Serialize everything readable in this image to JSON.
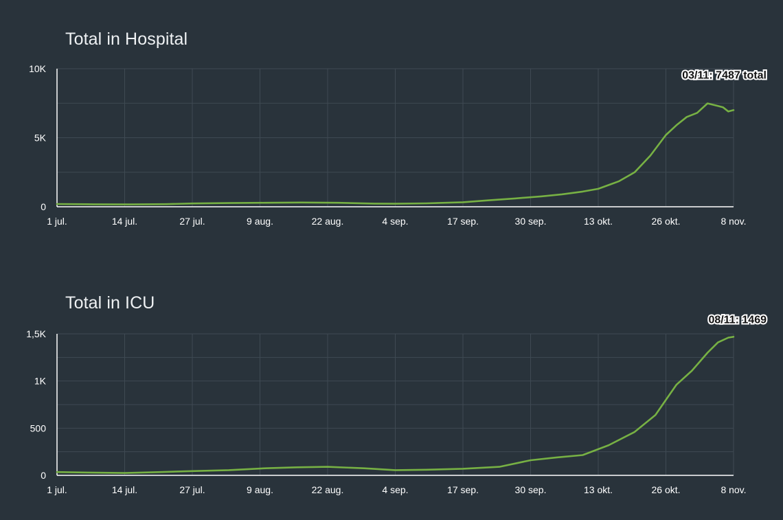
{
  "colors": {
    "background": "#29333b",
    "line": "#77b144",
    "grid": "#3f4a53",
    "text": "#ffffff"
  },
  "chart_data": [
    {
      "type": "line",
      "title": "Total in Hospital",
      "xlabel": "",
      "ylabel": "",
      "x_tick_labels": [
        "1 jul.",
        "14 jul.",
        "27 jul.",
        "9 aug.",
        "22 aug.",
        "4 sep.",
        "17 sep.",
        "30 sep.",
        "13 okt.",
        "26 okt.",
        "8 nov."
      ],
      "y_tick_labels": [
        "0",
        "5K",
        "10K"
      ],
      "y_ticks": [
        0,
        5000,
        10000
      ],
      "ylim": [
        0,
        10000
      ],
      "x_range": [
        "2020-07-01",
        "2020-11-08"
      ],
      "grid": true,
      "annotation": {
        "text": "03/11: 7487 total",
        "x": "2020-11-03",
        "y": 7487
      },
      "series": [
        {
          "x": [
            "2020-07-01",
            "2020-07-08",
            "2020-07-15",
            "2020-07-22",
            "2020-07-27",
            "2020-08-03",
            "2020-08-10",
            "2020-08-17",
            "2020-08-24",
            "2020-08-31",
            "2020-09-04",
            "2020-09-10",
            "2020-09-17",
            "2020-09-22",
            "2020-09-27",
            "2020-10-02",
            "2020-10-06",
            "2020-10-10",
            "2020-10-13",
            "2020-10-17",
            "2020-10-20",
            "2020-10-23",
            "2020-10-26",
            "2020-10-28",
            "2020-10-30",
            "2020-11-01",
            "2020-11-03",
            "2020-11-05",
            "2020-11-06",
            "2020-11-07",
            "2020-11-08"
          ],
          "values": [
            200,
            180,
            170,
            190,
            240,
            270,
            290,
            310,
            290,
            230,
            220,
            250,
            330,
            470,
            600,
            750,
            900,
            1100,
            1300,
            1850,
            2500,
            3700,
            5200,
            5900,
            6500,
            6800,
            7487,
            7300,
            7200,
            6900,
            7000
          ]
        }
      ]
    },
    {
      "type": "line",
      "title": "Total in ICU",
      "xlabel": "",
      "ylabel": "",
      "x_tick_labels": [
        "1 jul.",
        "14 jul.",
        "27 jul.",
        "9 aug.",
        "22 aug.",
        "4 sep.",
        "17 sep.",
        "30 sep.",
        "13 okt.",
        "26 okt.",
        "8 nov."
      ],
      "y_tick_labels": [
        "0",
        "500",
        "1K",
        "1,5K"
      ],
      "y_ticks": [
        0,
        500,
        1000,
        1500
      ],
      "ylim": [
        0,
        1500
      ],
      "x_range": [
        "2020-07-01",
        "2020-11-08"
      ],
      "grid": true,
      "annotation": {
        "text": "08/11: 1469",
        "x": "2020-11-08",
        "y": 1469
      },
      "series": [
        {
          "x": [
            "2020-07-01",
            "2020-07-07",
            "2020-07-14",
            "2020-07-21",
            "2020-07-27",
            "2020-08-03",
            "2020-08-10",
            "2020-08-16",
            "2020-08-22",
            "2020-08-29",
            "2020-09-04",
            "2020-09-10",
            "2020-09-17",
            "2020-09-24",
            "2020-09-30",
            "2020-10-05",
            "2020-10-10",
            "2020-10-15",
            "2020-10-20",
            "2020-10-24",
            "2020-10-26",
            "2020-10-28",
            "2020-10-31",
            "2020-11-03",
            "2020-11-05",
            "2020-11-07",
            "2020-11-08"
          ],
          "values": [
            35,
            30,
            25,
            35,
            45,
            55,
            75,
            85,
            90,
            75,
            55,
            60,
            70,
            90,
            160,
            190,
            215,
            320,
            460,
            640,
            800,
            960,
            1110,
            1300,
            1410,
            1460,
            1469
          ]
        }
      ]
    }
  ]
}
